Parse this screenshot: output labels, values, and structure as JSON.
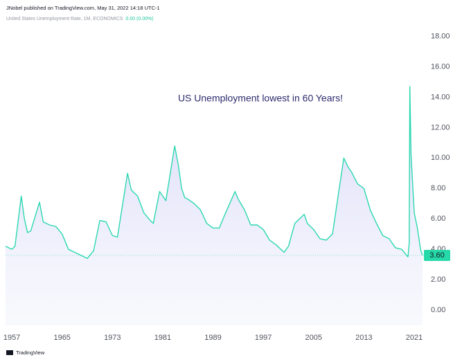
{
  "chart_data": {
    "type": "area",
    "header": "JNobel published on TradingView.com, May 31, 2022 14:18 UTC-1",
    "legend_value": "0.00 (0.00%)",
    "annotation": "US Unemployment lowest in 60 Years!",
    "footer": "TradingView",
    "x": [
      1956.0,
      1957.0,
      1957.5,
      1958.5,
      1959.0,
      1959.5,
      1960.0,
      1961.4,
      1962.0,
      1963.0,
      1964.0,
      1965.0,
      1966.0,
      1967.0,
      1968.0,
      1969.0,
      1970.0,
      1971.0,
      1972.0,
      1973.0,
      1973.8,
      1975.4,
      1976.0,
      1977.0,
      1978.0,
      1979.0,
      1979.5,
      1980.5,
      1981.0,
      1981.5,
      1982.9,
      1983.5,
      1984.0,
      1984.5,
      1985.0,
      1986.0,
      1987.0,
      1988.0,
      1989.0,
      1990.0,
      1991.0,
      1992.5,
      1993.0,
      1994.0,
      1995.0,
      1996.0,
      1997.0,
      1998.0,
      1999.0,
      2000.3,
      2001.0,
      2002.0,
      2003.5,
      2004.0,
      2005.0,
      2006.0,
      2007.0,
      2008.0,
      2009.0,
      2009.8,
      2010.5,
      2011.0,
      2012.0,
      2013.0,
      2014.0,
      2015.0,
      2016.0,
      2017.0,
      2018.0,
      2019.0,
      2020.0,
      2020.2,
      2020.3,
      2020.5,
      2021.0,
      2021.5,
      2022.0,
      2022.3
    ],
    "series": [
      {
        "name": "United States Unemployment Rate, 1M, ECONOMICS",
        "color": "#2ad8b0",
        "values": [
          4.2,
          4.0,
          4.2,
          7.5,
          6.0,
          5.1,
          5.2,
          7.1,
          5.8,
          5.6,
          5.5,
          5.0,
          4.0,
          3.8,
          3.6,
          3.4,
          3.9,
          5.9,
          5.8,
          4.9,
          4.8,
          9.0,
          7.9,
          7.5,
          6.4,
          5.9,
          5.7,
          7.8,
          7.5,
          7.2,
          10.8,
          9.5,
          8.0,
          7.4,
          7.3,
          7.0,
          6.6,
          5.7,
          5.4,
          5.4,
          6.4,
          7.8,
          7.3,
          6.6,
          5.6,
          5.6,
          5.3,
          4.6,
          4.3,
          3.8,
          4.2,
          5.7,
          6.3,
          5.7,
          5.3,
          4.7,
          4.6,
          5.0,
          7.8,
          10.0,
          9.4,
          9.1,
          8.3,
          8.0,
          6.6,
          5.7,
          4.9,
          4.7,
          4.1,
          4.0,
          3.5,
          4.4,
          14.7,
          10.2,
          6.4,
          5.4,
          4.0,
          3.6
        ]
      }
    ],
    "price_line": {
      "value": 3.6,
      "label": "3.60"
    },
    "xlim": [
      1956.0,
      2023.2
    ],
    "xticks": [
      1957,
      1965,
      1973,
      1981,
      1989,
      1997,
      2005,
      2013,
      2021
    ],
    "ylim": [
      -1.0,
      18.8
    ],
    "yticks": [
      {
        "value": 0,
        "label": "0.00"
      },
      {
        "value": 2,
        "label": "2.00"
      },
      {
        "value": 4,
        "label": "4.00"
      },
      {
        "value": 6,
        "label": "6.00"
      },
      {
        "value": 8,
        "label": "8.00"
      },
      {
        "value": 10,
        "label": "10.00"
      },
      {
        "value": 12,
        "label": "12.00"
      },
      {
        "value": 14,
        "label": "14.00"
      },
      {
        "value": 16,
        "label": "16.00"
      },
      {
        "value": 18,
        "label": "18.00"
      }
    ],
    "grid": false
  }
}
